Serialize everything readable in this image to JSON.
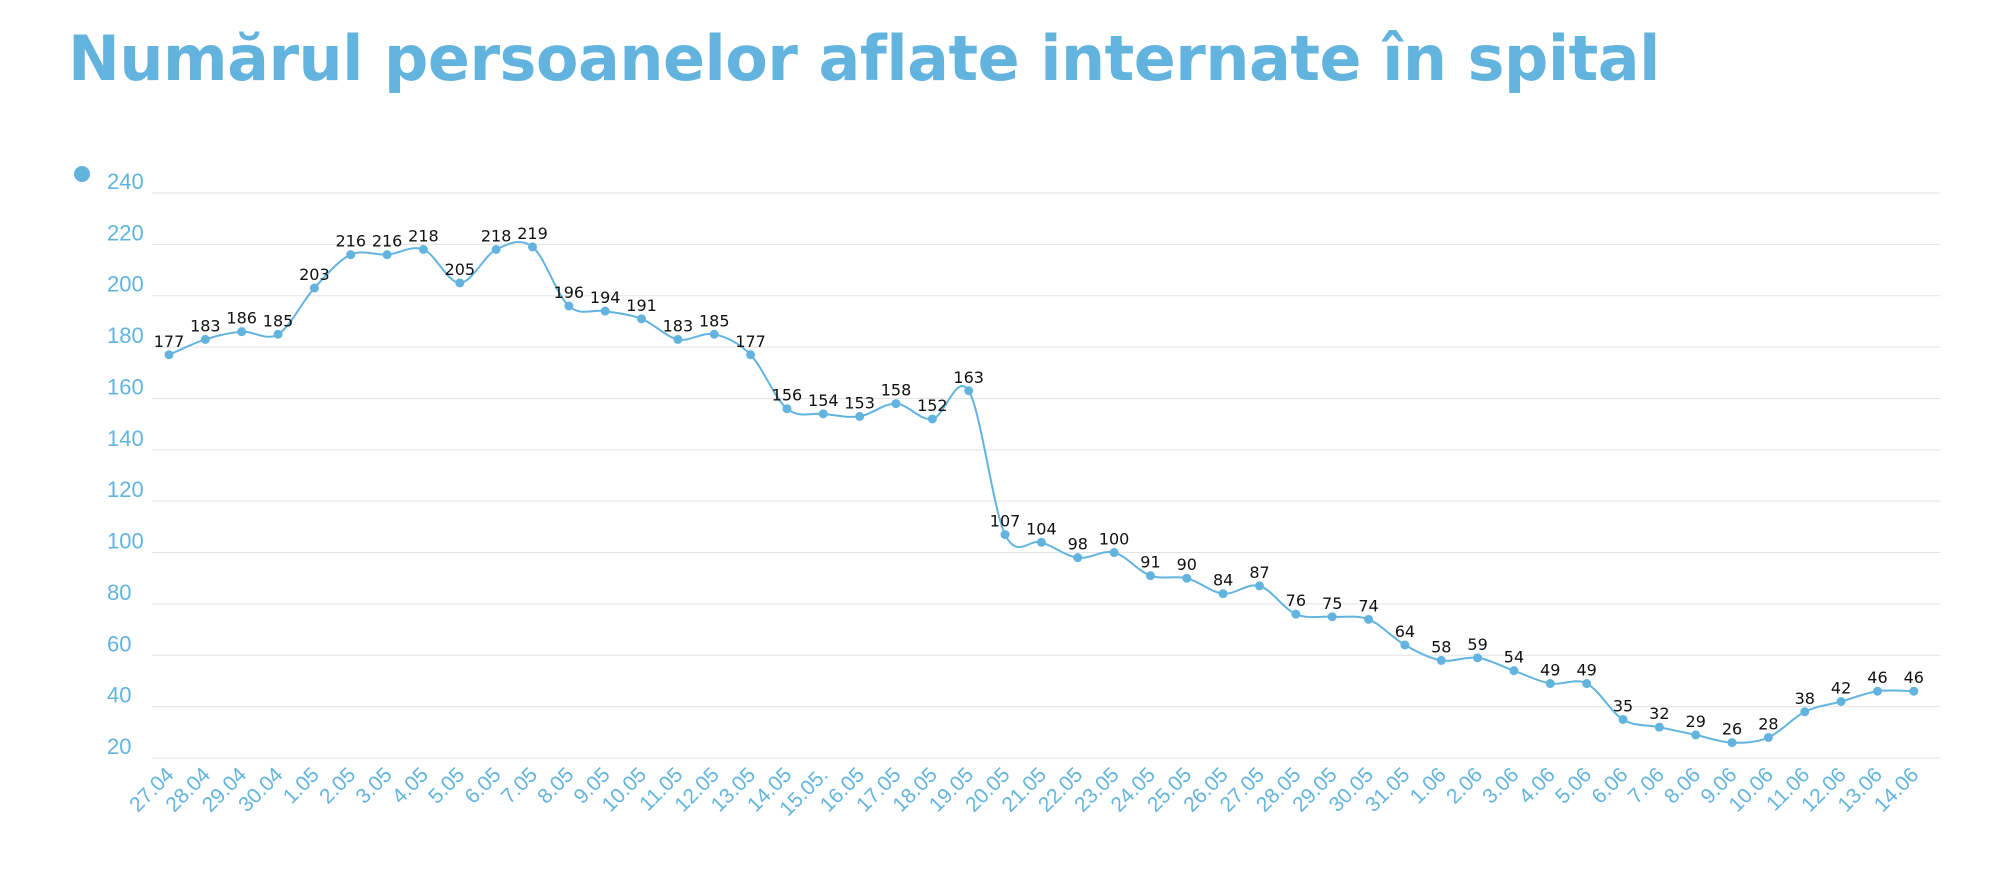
{
  "chart_data": {
    "type": "line",
    "title": "Numărul persoanelor aflate internate în spital",
    "xlabel": "",
    "ylabel": "",
    "ylim": [
      20,
      240
    ],
    "yticks": [
      20,
      40,
      60,
      80,
      100,
      120,
      140,
      160,
      180,
      200,
      220,
      240
    ],
    "grid": true,
    "legend": "top-left",
    "categories": [
      "27.04",
      "28.04",
      "29.04",
      "30.04",
      "1.05",
      "2.05",
      "3.05",
      "4.05",
      "5.05",
      "6.05",
      "7.05",
      "8.05",
      "9.05",
      "10.05",
      "11.05",
      "12.05",
      "13.05",
      "14.05",
      "15.05.",
      "16.05",
      "17.05",
      "18.05",
      "19.05",
      "20.05",
      "21.05",
      "22.05",
      "23.05",
      "24.05",
      "25.05",
      "26.05",
      "27.05",
      "28.05",
      "29.05",
      "30.05",
      "31.05",
      "1.06",
      "2.06",
      "3.06",
      "4.06",
      "5.06",
      "6.06",
      "7.06",
      "8.06",
      "9.06",
      "10.06",
      "11.06",
      "12.06",
      "13.06",
      "14.06"
    ],
    "series": [
      {
        "values": [
          177,
          183,
          186,
          185,
          203,
          216,
          216,
          218,
          205,
          218,
          219,
          196,
          194,
          191,
          183,
          185,
          177,
          156,
          154,
          153,
          158,
          152,
          163,
          107,
          104,
          98,
          100,
          91,
          90,
          84,
          87,
          76,
          75,
          74,
          64,
          58,
          59,
          54,
          49,
          49,
          35,
          32,
          29,
          26,
          28,
          38,
          42,
          46,
          46
        ],
        "color": "#62b4df"
      }
    ]
  }
}
